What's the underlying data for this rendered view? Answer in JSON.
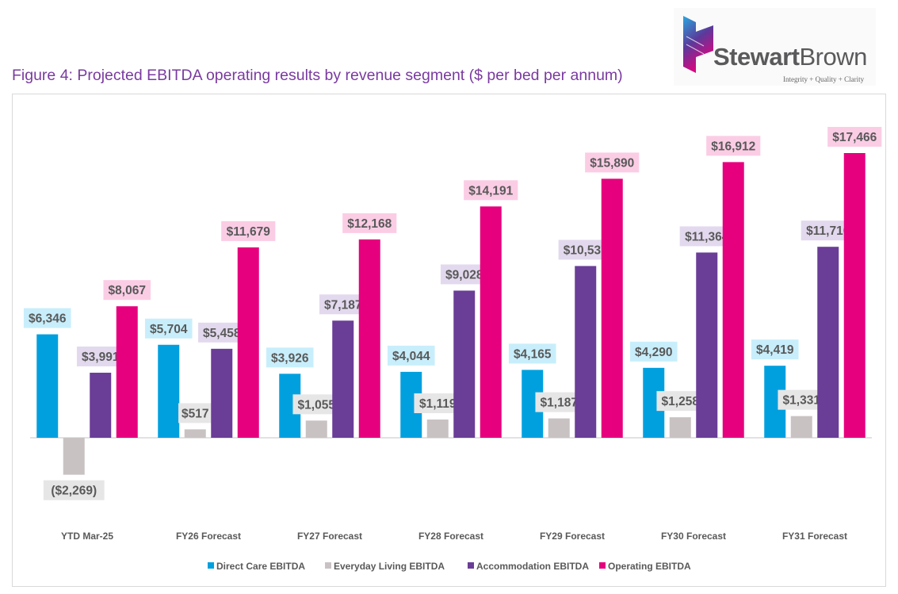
{
  "title": "Figure 4: Projected EBITDA operating results by revenue segment ($ per bed per annum)",
  "logo": {
    "name_bold": "Stewart",
    "name_regular": "Brown",
    "tagline": "Integrity + Quality + Clarity"
  },
  "chart_data": {
    "type": "bar",
    "title": "Figure 4: Projected EBITDA operating results by revenue segment ($ per bed per annum)",
    "categories": [
      "YTD Mar-25",
      "FY26 Forecast",
      "FY27 Forecast",
      "FY28 Forecast",
      "FY29 Forecast",
      "FY30 Forecast",
      "FY31 Forecast"
    ],
    "series": [
      {
        "name": "Direct Care EBITDA",
        "color": "#00a0df",
        "label_bg": "#c8eefb",
        "values": [
          6346,
          5704,
          3926,
          4044,
          4165,
          4290,
          4419
        ],
        "labels": [
          "$6,346",
          "$5,704",
          "$3,926",
          "$4,044",
          "$4,165",
          "$4,290",
          "$4,419"
        ]
      },
      {
        "name": "Everyday Living EBITDA",
        "color": "#c9c2c3",
        "label_bg": "#e7e6e6",
        "values": [
          -2269,
          517,
          1055,
          1119,
          1187,
          1258,
          1331
        ],
        "labels": [
          "($2,269)",
          "$517",
          "$1,055",
          "$1,119",
          "$1,187",
          "$1,258",
          "$1,331"
        ]
      },
      {
        "name": "Accommodation EBITDA",
        "color": "#6a3d97",
        "label_bg": "#e3d9ee",
        "values": [
          3991,
          5458,
          7187,
          9028,
          10537,
          11364,
          11716
        ],
        "labels": [
          "$3,991",
          "$5,458",
          "$7,187",
          "$9,028",
          "$10,537",
          "$11,364",
          "$11,716"
        ]
      },
      {
        "name": "Operating EBITDA",
        "color": "#e6007e",
        "label_bg": "#fbcde5",
        "values": [
          8067,
          11679,
          12168,
          14191,
          15890,
          16912,
          17466
        ],
        "labels": [
          "$8,067",
          "$11,679",
          "$12,168",
          "$14,191",
          "$15,890",
          "$16,912",
          "$17,466"
        ]
      }
    ],
    "negative_label_color": "#ff0000",
    "legend": "bottom",
    "grid": false,
    "xlabel": "",
    "ylabel": ""
  }
}
